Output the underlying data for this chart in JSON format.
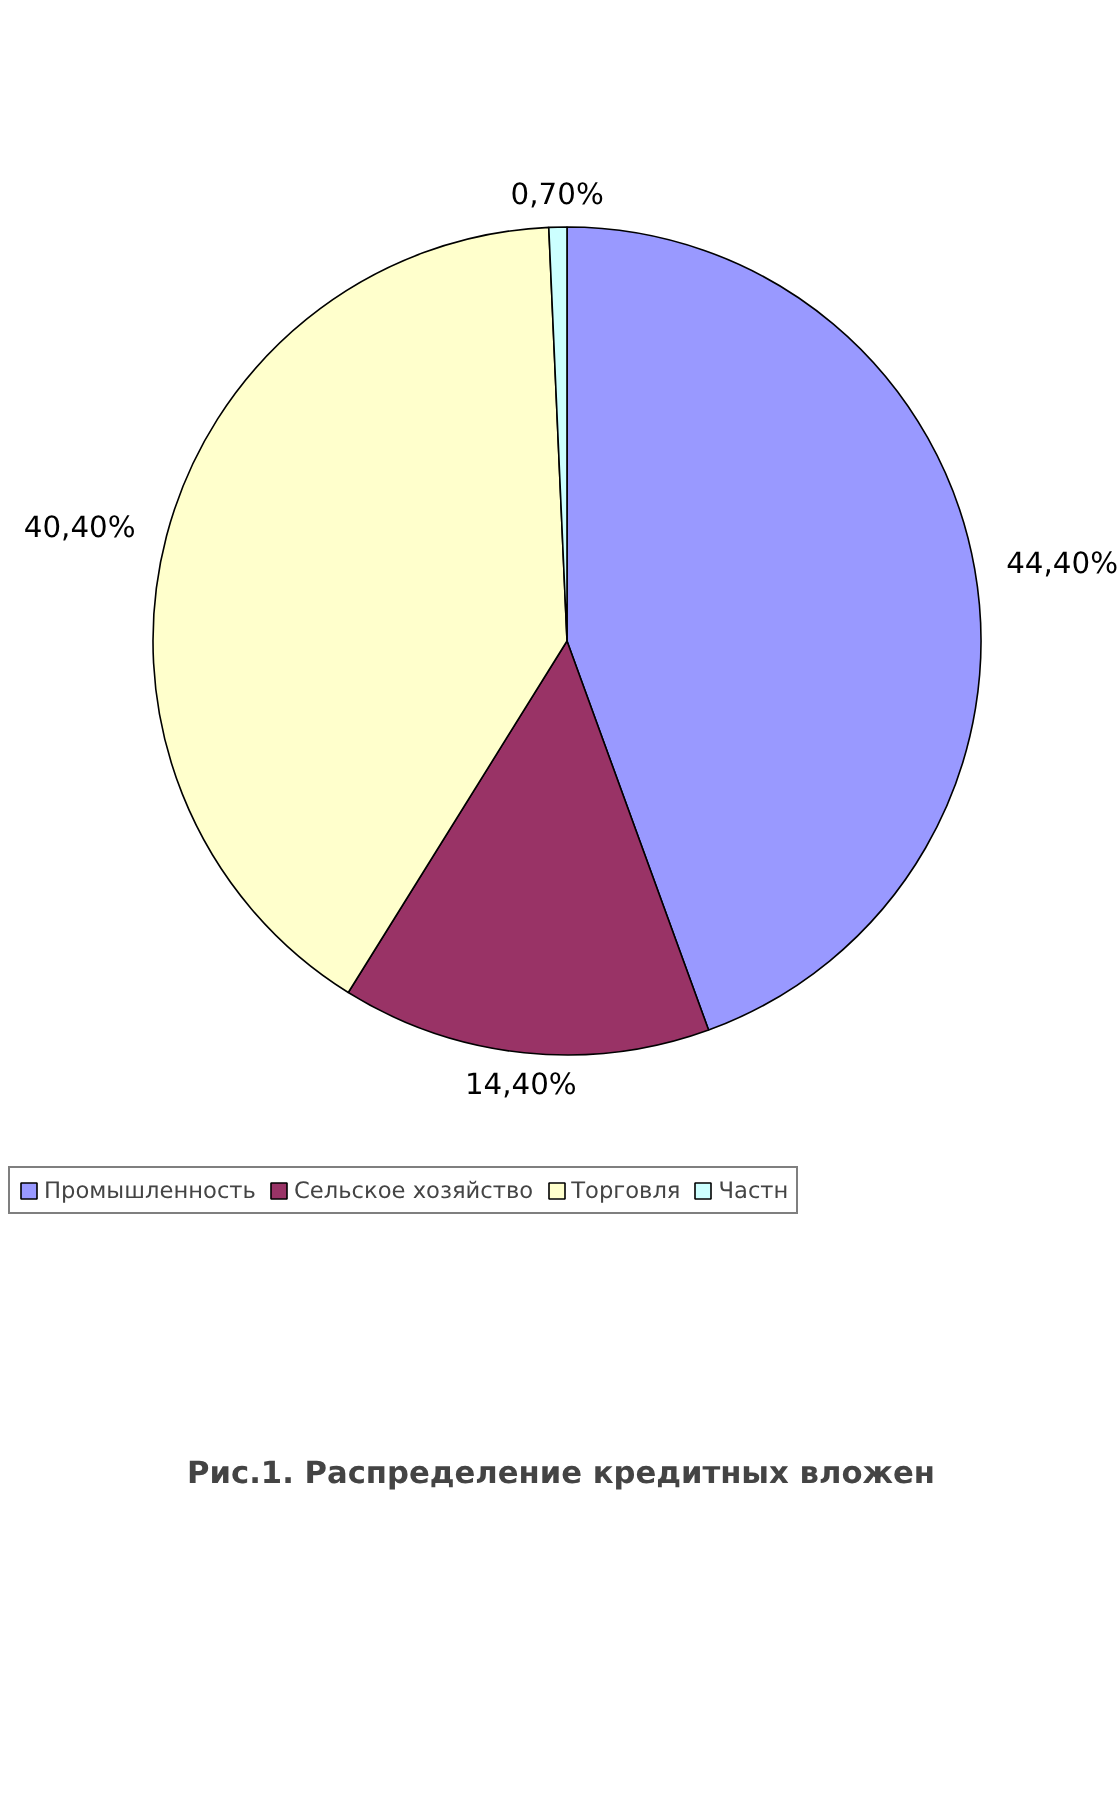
{
  "chart_data": {
    "type": "pie",
    "title": "Рис.1. Распределение кредитных вложен",
    "categories": [
      "Промышленность",
      "Сельское хозяйство",
      "Торговля",
      "Частн"
    ],
    "values": [
      44.4,
      14.4,
      40.4,
      0.7
    ],
    "colors": [
      "#9999ff",
      "#993366",
      "#ffffcc",
      "#ccffff"
    ],
    "value_labels": [
      "44,40%",
      "14,40%",
      "40,40%",
      "0,70%"
    ],
    "legend": "bottom"
  }
}
